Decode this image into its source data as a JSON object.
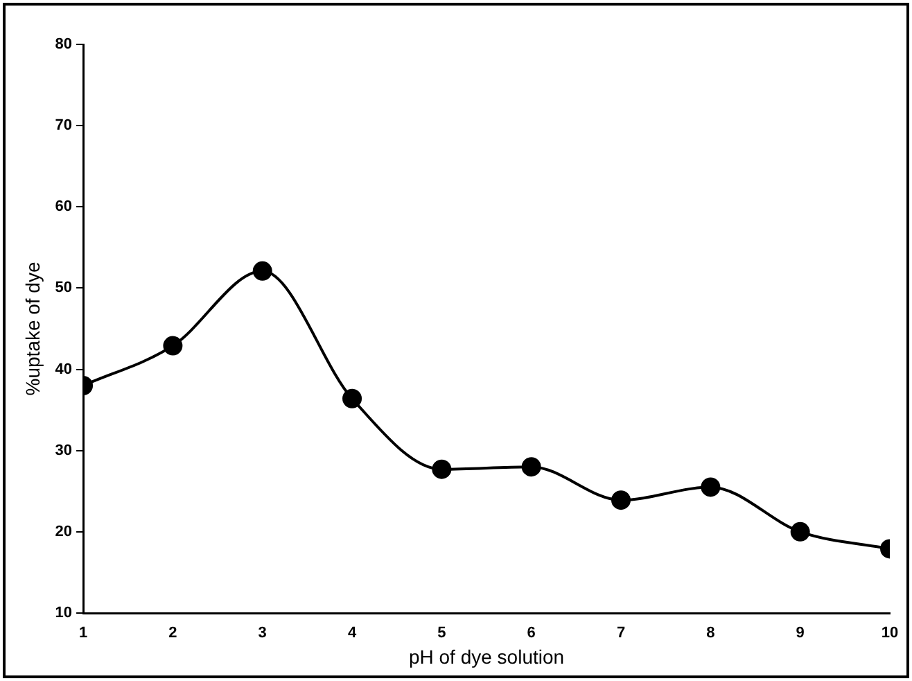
{
  "chart_data": {
    "type": "line",
    "xlabel": "pH of dye solution",
    "ylabel": "%uptake of dye",
    "x": [
      1,
      2,
      3,
      4,
      5,
      6,
      7,
      8,
      9,
      10
    ],
    "series": [
      {
        "color": "#000000",
        "values": [
          38.0,
          42.9,
          52.1,
          36.4,
          27.7,
          28.0,
          23.9,
          25.5,
          20.0,
          17.9
        ]
      }
    ],
    "xlim": [
      1,
      10
    ],
    "xticks": [
      1,
      2,
      3,
      4,
      5,
      6,
      7,
      8,
      9,
      10
    ],
    "ylim": [
      10,
      80
    ],
    "yticks": [
      10,
      20,
      30,
      40,
      50,
      60,
      70,
      80
    ],
    "grid": false,
    "legend": false,
    "marker": "circle",
    "line_style": "solid"
  }
}
